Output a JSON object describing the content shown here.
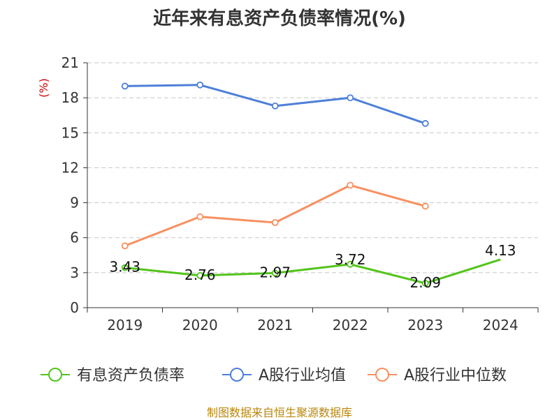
{
  "chart_data": {
    "type": "line",
    "title": "近年来有息资产负债率情况(%)",
    "ylabel": "(%)",
    "xlabel": "",
    "categories": [
      "2019",
      "2020",
      "2021",
      "2022",
      "2023",
      "2024"
    ],
    "yticks": [
      "0",
      "3",
      "6",
      "9",
      "12",
      "15",
      "18",
      "21"
    ],
    "ylim": [
      0,
      21
    ],
    "grid": true,
    "legend_position": "bottom",
    "series": [
      {
        "name": "有息资产负债率",
        "color": "#52c41a",
        "values": [
          3.43,
          2.76,
          2.97,
          3.72,
          2.09,
          4.13
        ],
        "labels": [
          "3.43",
          "2.76",
          "2.97",
          "3.72",
          "2.09",
          "4.13"
        ]
      },
      {
        "name": "A股行业均值",
        "color": "#4e7fd9",
        "values": [
          19.0,
          19.1,
          17.3,
          18.0,
          15.8,
          null
        ]
      },
      {
        "name": "A股行业中位数",
        "color": "#f79060",
        "values": [
          5.3,
          7.8,
          7.3,
          10.5,
          8.7,
          null
        ]
      }
    ]
  },
  "footer": {
    "source": "制图数据来自恒生聚源数据库"
  }
}
